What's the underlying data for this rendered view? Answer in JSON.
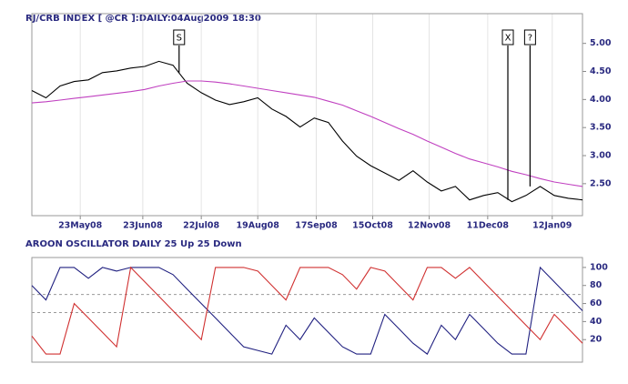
{
  "chart_data": [
    {
      "type": "line",
      "title": "RJ/CRB INDEX [ @CR ]:DAILY:04Aug2009 18:30",
      "x": [
        "2008-04-29",
        "2008-05-06",
        "2008-05-13",
        "2008-05-20",
        "2008-05-27",
        "2008-06-03",
        "2008-06-10",
        "2008-06-17",
        "2008-06-24",
        "2008-07-01",
        "2008-07-08",
        "2008-07-15",
        "2008-07-22",
        "2008-07-29",
        "2008-08-05",
        "2008-08-12",
        "2008-08-19",
        "2008-08-26",
        "2008-09-02",
        "2008-09-09",
        "2008-09-16",
        "2008-09-23",
        "2008-09-30",
        "2008-10-07",
        "2008-10-14",
        "2008-10-21",
        "2008-10-28",
        "2008-11-04",
        "2008-11-11",
        "2008-11-18",
        "2008-11-25",
        "2008-12-02",
        "2008-12-09",
        "2008-12-16",
        "2008-12-23",
        "2008-12-30",
        "2009-01-06",
        "2009-01-13",
        "2009-01-20",
        "2009-01-27"
      ],
      "series": [
        {
          "color": "#000000",
          "values": [
            4.16,
            4.03,
            4.24,
            4.32,
            4.35,
            4.48,
            4.51,
            4.56,
            4.59,
            4.68,
            4.61,
            4.29,
            4.12,
            3.99,
            3.91,
            3.96,
            4.03,
            3.83,
            3.7,
            3.51,
            3.67,
            3.59,
            3.26,
            2.99,
            2.82,
            2.69,
            2.56,
            2.73,
            2.53,
            2.37,
            2.45,
            2.21,
            2.29,
            2.34,
            2.18,
            2.29,
            2.45,
            2.29,
            2.24,
            2.21
          ]
        },
        {
          "color": "#c040c0",
          "values": [
            3.94,
            3.96,
            3.99,
            4.02,
            4.05,
            4.08,
            4.11,
            4.14,
            4.18,
            4.24,
            4.29,
            4.33,
            4.33,
            4.31,
            4.28,
            4.24,
            4.2,
            4.16,
            4.12,
            4.08,
            4.04,
            3.97,
            3.9,
            3.8,
            3.7,
            3.59,
            3.48,
            3.38,
            3.26,
            3.15,
            3.04,
            2.94,
            2.87,
            2.8,
            2.72,
            2.66,
            2.59,
            2.53,
            2.49,
            2.45
          ]
        }
      ],
      "xlim": [
        "2008-04-29",
        "2009-01-27"
      ],
      "xticks": [
        {
          "value": "2008-05-23",
          "label": "23May08"
        },
        {
          "value": "2008-06-23",
          "label": "23Jun08"
        },
        {
          "value": "2008-07-22",
          "label": "22Jul08"
        },
        {
          "value": "2008-08-19",
          "label": "19Aug08"
        },
        {
          "value": "2008-09-17",
          "label": "17Sep08"
        },
        {
          "value": "2008-10-15",
          "label": "15Oct08"
        },
        {
          "value": "2008-11-12",
          "label": "12Nov08"
        },
        {
          "value": "2008-12-11",
          "label": "11Dec08"
        },
        {
          "value": "2009-01-12",
          "label": "12Jan09"
        }
      ],
      "ylim": [
        1.93,
        5.53
      ],
      "yticks": [
        {
          "value": 2.5,
          "label": "2.50"
        },
        {
          "value": 3,
          "label": "3.00"
        },
        {
          "value": 3.5,
          "label": "3.50"
        },
        {
          "value": 4,
          "label": "4.00"
        },
        {
          "value": 4.5,
          "label": "4.50"
        },
        {
          "value": 5,
          "label": "5.00"
        }
      ],
      "annotations": [
        {
          "text": "S",
          "x": "2008-07-11",
          "y": 4.48
        },
        {
          "text": "X",
          "x": "2008-12-21",
          "y": 2.21
        },
        {
          "text": "?",
          "x": "2009-01-01",
          "y": 2.45
        }
      ]
    },
    {
      "type": "line",
      "title": "AROON OSCILLATOR DAILY 25 Up 25 Down",
      "x": [
        "2008-04-29",
        "2008-05-06",
        "2008-05-13",
        "2008-05-20",
        "2008-05-27",
        "2008-06-03",
        "2008-06-10",
        "2008-06-17",
        "2008-06-24",
        "2008-07-01",
        "2008-07-08",
        "2008-07-15",
        "2008-07-22",
        "2008-07-29",
        "2008-08-05",
        "2008-08-12",
        "2008-08-19",
        "2008-08-26",
        "2008-09-02",
        "2008-09-09",
        "2008-09-16",
        "2008-09-23",
        "2008-09-30",
        "2008-10-07",
        "2008-10-14",
        "2008-10-21",
        "2008-10-28",
        "2008-11-04",
        "2008-11-11",
        "2008-11-18",
        "2008-11-25",
        "2008-12-02",
        "2008-12-09",
        "2008-12-16",
        "2008-12-23",
        "2008-12-30",
        "2009-01-06",
        "2009-01-13",
        "2009-01-20",
        "2009-01-27"
      ],
      "series": [
        {
          "color": "#202080",
          "values": [
            80,
            64,
            100,
            100,
            88,
            100,
            96,
            100,
            100,
            100,
            92,
            76,
            60,
            44,
            28,
            12,
            8,
            4,
            36,
            20,
            44,
            28,
            12,
            4,
            4,
            48,
            32,
            16,
            4,
            36,
            20,
            48,
            32,
            16,
            4,
            4,
            100,
            84,
            68,
            52
          ]
        },
        {
          "color": "#d03030",
          "values": [
            24,
            4,
            4,
            60,
            44,
            28,
            12,
            100,
            84,
            68,
            52,
            36,
            20,
            100,
            100,
            100,
            96,
            80,
            64,
            100,
            100,
            100,
            92,
            76,
            100,
            96,
            80,
            64,
            100,
            100,
            88,
            100,
            84,
            68,
            52,
            36,
            20,
            48,
            32,
            16
          ]
        }
      ],
      "xlim": [
        "2008-04-29",
        "2009-01-27"
      ],
      "ylim": [
        -5,
        111
      ],
      "yticks": [
        20,
        40,
        60,
        80,
        100
      ],
      "reference_lines": [
        70,
        50
      ]
    }
  ]
}
